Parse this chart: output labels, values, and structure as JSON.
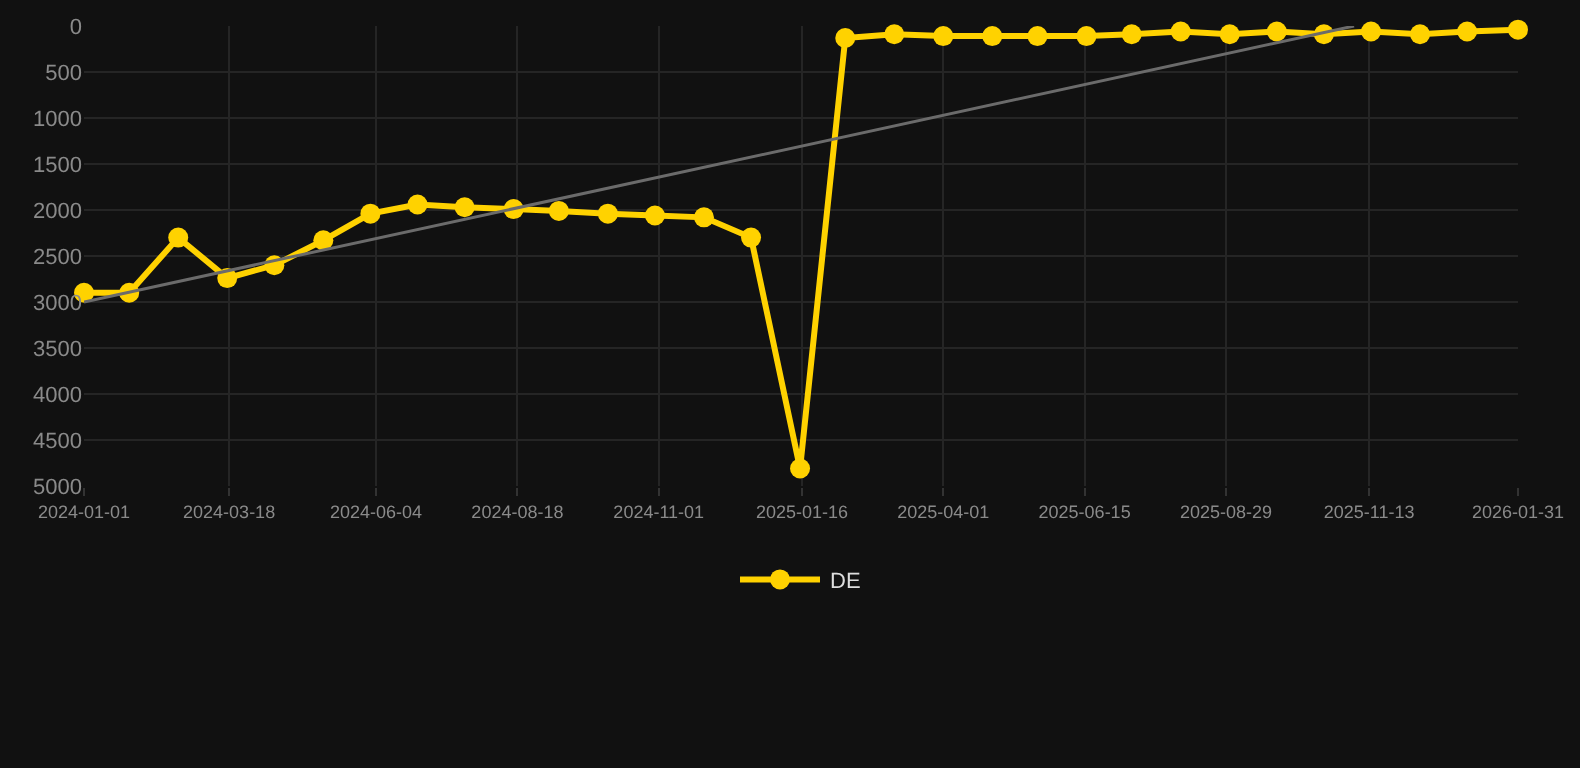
{
  "chart_data": {
    "type": "line",
    "xlim": [
      "2024-01-01",
      "2026-01-31"
    ],
    "xticks": [
      "2024-01-01",
      "2024-03-18",
      "2024-06-04",
      "2024-08-18",
      "2024-11-01",
      "2025-01-16",
      "2025-04-01",
      "2025-06-15",
      "2025-08-29",
      "2025-11-13",
      "2026-01-31"
    ],
    "ylim": [
      5000,
      0
    ],
    "yticks": [
      0,
      500,
      1000,
      1500,
      2000,
      2500,
      3000,
      3500,
      4000,
      4500,
      5000
    ],
    "grid": true,
    "legend": "bottom",
    "marker": "circle",
    "line_style": "solid",
    "series": [
      {
        "name": "DE",
        "color": "#ffd200",
        "x": [
          "2024-01-01",
          "2024-01-25",
          "2024-02-20",
          "2024-03-17",
          "2024-04-11",
          "2024-05-07",
          "2024-06-01",
          "2024-06-26",
          "2024-07-21",
          "2024-08-16",
          "2024-09-09",
          "2024-10-05",
          "2024-10-30",
          "2024-11-25",
          "2024-12-20",
          "2025-01-15",
          "2025-02-08",
          "2025-03-06",
          "2025-04-01",
          "2025-04-27",
          "2025-05-21",
          "2025-06-16",
          "2025-07-10",
          "2025-08-05",
          "2025-08-31",
          "2025-09-25",
          "2025-10-20",
          "2025-11-14",
          "2025-12-10",
          "2026-01-04",
          "2026-01-31"
        ],
        "values": [
          2900,
          2900,
          2300,
          2740,
          2600,
          2330,
          2040,
          1940,
          1970,
          1990,
          2010,
          2040,
          2060,
          2080,
          2300,
          4810,
          130,
          90,
          110,
          110,
          110,
          110,
          90,
          60,
          90,
          60,
          90,
          60,
          90,
          60,
          40
        ]
      },
      {
        "type": "line",
        "color": "#6b6b6b",
        "marker": "none",
        "x": [
          "2024-01-01",
          "2025-11-05"
        ],
        "values": [
          3000,
          0
        ]
      }
    ]
  }
}
